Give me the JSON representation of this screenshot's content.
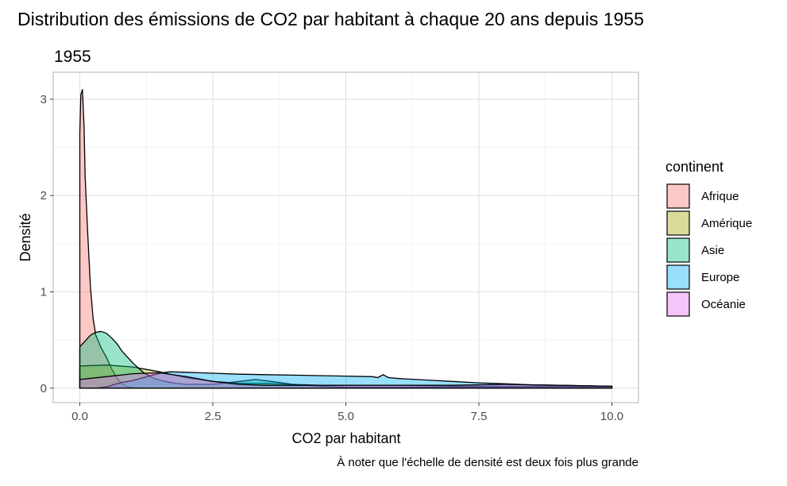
{
  "chart_data": {
    "type": "area",
    "title": "Distribution des émissions de CO2 par habitant à chaque 20 ans depuis 1955",
    "subtitle": "1955",
    "xlabel": "CO2 par habitant",
    "ylabel": "Densité",
    "caption": "À noter que l'échelle de densité est deux fois plus grande",
    "xlim": [
      -0.5,
      10.5
    ],
    "ylim": [
      -0.15,
      3.28
    ],
    "x_ticks": [
      0,
      2.5,
      5,
      7.5,
      10
    ],
    "x_tick_labels": [
      "0.0",
      "2.5",
      "5.0",
      "7.5",
      "10.0"
    ],
    "y_ticks": [
      0,
      1,
      2,
      3
    ],
    "y_tick_labels": [
      "0",
      "1",
      "2",
      "3"
    ],
    "grid": true,
    "legend_title": "continent",
    "legend_position": "right",
    "series": [
      {
        "name": "Afrique",
        "color": "#F8766D",
        "x": [
          0,
          0.02,
          0.05,
          0.08,
          0.1,
          0.15,
          0.2,
          0.25,
          0.3,
          0.4,
          0.5,
          0.6,
          0.7,
          0.8,
          0.9,
          1.0,
          1.1,
          1.2,
          1.3
        ],
        "y": [
          2.65,
          3.05,
          3.1,
          2.7,
          2.2,
          1.6,
          1.05,
          0.72,
          0.55,
          0.42,
          0.32,
          0.2,
          0.1,
          0.04,
          0.015,
          0.005,
          0.002,
          0.001,
          0
        ]
      },
      {
        "name": "Amérique",
        "color": "#A3A500",
        "x": [
          0,
          0.5,
          1,
          1.5,
          2,
          2.5,
          3,
          3.5,
          4,
          4.5,
          5,
          5.5,
          6,
          7,
          8,
          9,
          10
        ],
        "y": [
          0.23,
          0.24,
          0.22,
          0.17,
          0.11,
          0.07,
          0.05,
          0.05,
          0.04,
          0.03,
          0.03,
          0.03,
          0.03,
          0.02,
          0.02,
          0.02,
          0.02
        ]
      },
      {
        "name": "Asie",
        "color": "#00BF7D",
        "x": [
          0,
          0.1,
          0.2,
          0.3,
          0.4,
          0.5,
          0.6,
          0.7,
          0.8,
          1.0,
          1.2,
          1.4,
          1.6,
          1.8,
          2.0,
          2.5,
          3.0,
          3.3,
          3.6,
          4.0,
          4.5,
          5,
          6,
          7,
          8,
          9,
          10
        ],
        "y": [
          0.43,
          0.49,
          0.55,
          0.58,
          0.59,
          0.57,
          0.52,
          0.46,
          0.38,
          0.26,
          0.16,
          0.1,
          0.07,
          0.05,
          0.04,
          0.04,
          0.07,
          0.09,
          0.07,
          0.04,
          0.02,
          0.01,
          0.01,
          0.01,
          0.01,
          0.01,
          0.01
        ]
      },
      {
        "name": "Europe",
        "color": "#00B0F6",
        "x": [
          0,
          0.3,
          0.45,
          0.55,
          0.65,
          0.8,
          1.0,
          1.2,
          1.4,
          1.55,
          1.7,
          2,
          2.5,
          3,
          3.5,
          4,
          4.5,
          5,
          5.5,
          5.6,
          5.7,
          5.8,
          6,
          6.5,
          7,
          7.5,
          8,
          8.5,
          9,
          9.5,
          10
        ],
        "y": [
          0,
          0,
          0.01,
          0.02,
          0.04,
          0.06,
          0.08,
          0.11,
          0.14,
          0.16,
          0.17,
          0.165,
          0.155,
          0.145,
          0.14,
          0.135,
          0.13,
          0.125,
          0.12,
          0.11,
          0.14,
          0.11,
          0.1,
          0.085,
          0.07,
          0.055,
          0.045,
          0.035,
          0.03,
          0.025,
          0.02
        ]
      },
      {
        "name": "Océanie",
        "color": "#E76BF3",
        "x": [
          0,
          0.5,
          1,
          1.5,
          2,
          2.5,
          3,
          3.5,
          4,
          5,
          6,
          7,
          8,
          9,
          10
        ],
        "y": [
          0.09,
          0.12,
          0.15,
          0.16,
          0.12,
          0.07,
          0.04,
          0.03,
          0.03,
          0.03,
          0.03,
          0.03,
          0.04,
          0.03,
          0.02
        ]
      }
    ]
  }
}
